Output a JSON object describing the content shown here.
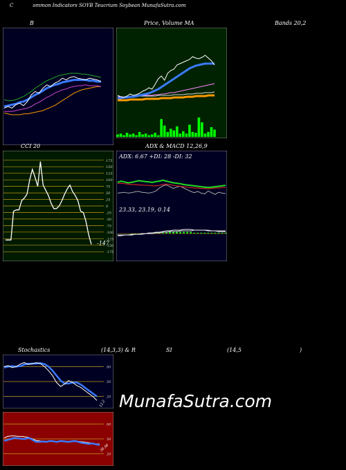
{
  "page_title": "Common Indicators SOYB Teucrium Soybean MunafaSutra.com",
  "title_letter": "C",
  "title_rest": "ommon  Indicators SOYB Teucrium Soybean  MunafaSutra.com",
  "watermark": "MunafaSutra.com",
  "colors": {
    "navy_bg": "#000022",
    "green_bg": "#002200",
    "olive_bg": "#001a00",
    "red_bg": "#8b0000",
    "price": "#ffffff",
    "ma_blue": "#3a7bff",
    "ma_green": "#22cc22",
    "ma_orange": "#ff9900",
    "volume": "#00ff00"
  },
  "chart_data": [
    {
      "id": "bollinger",
      "type": "line",
      "title": "B",
      "title_right": "Bands 20,2",
      "series": [
        {
          "values": [
            28,
            30,
            28,
            32,
            34,
            31,
            36,
            44,
            48,
            46,
            52,
            56,
            54,
            58,
            60,
            64,
            62,
            65,
            66,
            64,
            63,
            62,
            64,
            63,
            62,
            60
          ]
        },
        {
          "values": [
            30,
            31,
            32,
            33,
            35,
            36,
            38,
            41,
            44,
            46,
            49,
            52,
            54,
            56,
            57,
            59,
            60,
            61,
            62,
            62,
            62,
            62,
            61,
            61,
            60,
            60
          ]
        },
        {
          "values": [
            38,
            37,
            37,
            38,
            40,
            42,
            45,
            48,
            52,
            55,
            58,
            61,
            63,
            65,
            67,
            68,
            69,
            70,
            70,
            70,
            69,
            69,
            68,
            67,
            66,
            65
          ]
        },
        {
          "values": [
            24,
            24,
            24,
            25,
            26,
            27,
            28,
            30,
            33,
            35,
            38,
            41,
            43,
            46,
            48,
            50,
            51,
            53,
            54,
            55,
            55,
            56,
            55,
            55,
            55,
            54
          ]
        },
        {
          "values": [
            22,
            21,
            20,
            20,
            20,
            21,
            21,
            22,
            23,
            24,
            25,
            27,
            29,
            31,
            34,
            37,
            40,
            43,
            46,
            48,
            50,
            51,
            52,
            53,
            54,
            54
          ]
        }
      ],
      "ylim": [
        0,
        100
      ]
    },
    {
      "id": "price_ma",
      "type": "line",
      "title": "Price,  Volume  MA",
      "series": [
        {
          "values": [
            22,
            20,
            19,
            21,
            24,
            22,
            23,
            25,
            28,
            30,
            33,
            31,
            38,
            46,
            50,
            44,
            54,
            58,
            60,
            66,
            68,
            70,
            72,
            74,
            78,
            76,
            75,
            77,
            80,
            76,
            72,
            66
          ]
        },
        {
          "values": [
            18,
            18,
            19,
            19,
            20,
            20,
            21,
            22,
            23,
            24,
            25,
            27,
            29,
            31,
            34,
            37,
            40,
            43,
            46,
            49,
            52,
            55,
            58,
            61,
            63,
            65,
            66,
            67,
            68,
            68,
            68,
            68
          ]
        },
        {
          "values": [
            20,
            20,
            20,
            20,
            21,
            21,
            21,
            21,
            22,
            22,
            22,
            22,
            23,
            23,
            24,
            24,
            25,
            26,
            26,
            27,
            28,
            29,
            30,
            31,
            32,
            33,
            34,
            35,
            36,
            37,
            38,
            39
          ]
        },
        {
          "values": [
            20,
            20,
            20,
            20,
            20,
            20,
            20,
            21,
            21,
            21,
            21,
            21,
            21,
            22,
            22,
            22,
            22,
            22,
            23,
            23,
            23,
            23,
            24,
            24,
            24,
            25,
            25,
            25,
            26,
            26,
            26,
            27
          ]
        },
        {
          "values": [
            15,
            15,
            15,
            15,
            16,
            16,
            16,
            16,
            16,
            17,
            17,
            17,
            17,
            17,
            18,
            18,
            18,
            18,
            19,
            19,
            19,
            19,
            20,
            20,
            20,
            21,
            21,
            21,
            21,
            22,
            22,
            22
          ]
        }
      ],
      "volume": [
        3,
        4,
        2,
        5,
        3,
        4,
        2,
        6,
        3,
        4,
        2,
        3,
        5,
        2,
        22,
        14,
        6,
        10,
        8,
        13,
        4,
        7,
        4,
        15,
        6,
        5,
        24,
        18,
        4,
        6,
        12,
        9
      ],
      "ylim": [
        0,
        100
      ]
    },
    {
      "id": "cci",
      "type": "line",
      "title": "CCI 20",
      "yticks": [
        "175",
        "150",
        "125",
        "100",
        "75",
        "50",
        "25",
        "0",
        "-25",
        "-50",
        "-75",
        "-100",
        "-125",
        "-150",
        "-175"
      ],
      "values": [
        -130,
        -130,
        -130,
        -20,
        -15,
        -15,
        20,
        30,
        45,
        100,
        140,
        110,
        75,
        170,
        80,
        60,
        40,
        10,
        -10,
        -10,
        0,
        20,
        45,
        65,
        80,
        55,
        40,
        20,
        -20,
        -25,
        -60,
        -110,
        -147
      ],
      "last_label": "-147",
      "ylim": [
        -185,
        185
      ]
    },
    {
      "id": "adx_macd",
      "type": "line",
      "title_left": "ADX  & MACD 12,26,9",
      "adx_label": "ADX: 6.67  +DI: 28  -DI: 32",
      "macd_label": "23.33,  23.19,  0.14",
      "adx_green": [
        55,
        58,
        56,
        54,
        55,
        57,
        59,
        58,
        57,
        56,
        55,
        57,
        58,
        60,
        58,
        56,
        54,
        53,
        52,
        50,
        49,
        48,
        47,
        46,
        45,
        44,
        43,
        44,
        45,
        46,
        47,
        48
      ],
      "adx_red": [
        52,
        53,
        52,
        51,
        50,
        50,
        49,
        49,
        48,
        48,
        47,
        47,
        48,
        50,
        51,
        50,
        48,
        47,
        46,
        45,
        44,
        43,
        42,
        42,
        41,
        41,
        40,
        41,
        42,
        42,
        43,
        43
      ],
      "adx_gray": [
        30,
        31,
        32,
        30,
        31,
        33,
        34,
        32,
        31,
        30,
        32,
        35,
        42,
        47,
        49,
        45,
        41,
        44,
        46,
        42,
        38,
        34,
        31,
        34,
        30,
        28,
        35,
        31,
        27,
        32,
        30,
        29
      ],
      "macd": [
        -3,
        -3,
        -2,
        -2,
        -2,
        -1,
        -1,
        0,
        0,
        1,
        1,
        2,
        2,
        3,
        4,
        4,
        5,
        5,
        5,
        6,
        6,
        6,
        5,
        5,
        5,
        5,
        4,
        4,
        4,
        3,
        3,
        3
      ],
      "signal": [
        -2,
        -2,
        -2,
        -2,
        -1,
        -1,
        -1,
        -1,
        0,
        0,
        0,
        1,
        1,
        2,
        2,
        3,
        3,
        3,
        4,
        4,
        4,
        4,
        5,
        5,
        5,
        5,
        5,
        4,
        4,
        4,
        4,
        4
      ],
      "hist": [
        0,
        0,
        0,
        0,
        0,
        0,
        0,
        0,
        0,
        0,
        1,
        1,
        1,
        1,
        2,
        2,
        2,
        2,
        2,
        2,
        2,
        2,
        1,
        1,
        1,
        1,
        1,
        1,
        1,
        1,
        1,
        1
      ]
    },
    {
      "id": "stochastics",
      "type": "line",
      "title": "Stochastics",
      "params": "(14,3,3) & R",
      "yticks": [
        "80",
        "50",
        "20"
      ],
      "fast": [
        80,
        82,
        78,
        80,
        85,
        88,
        84,
        86,
        88,
        86,
        80,
        72,
        62,
        48,
        40,
        45,
        52,
        48,
        42,
        38,
        32,
        26,
        20,
        12
      ],
      "slow": [
        78,
        80,
        81,
        80,
        81,
        84,
        86,
        86,
        86,
        87,
        85,
        80,
        72,
        62,
        52,
        46,
        46,
        48,
        48,
        44,
        38,
        32,
        26,
        20
      ],
      "last_label": "12.2",
      "ylim": [
        0,
        100
      ]
    },
    {
      "id": "rsi",
      "type": "line",
      "title": "SI",
      "params_left": "(14,5",
      "params_right": ")",
      "yticks": [
        "80",
        "50",
        "20"
      ],
      "rsi": [
        46,
        48,
        50,
        52,
        51,
        50,
        50,
        52,
        48,
        44,
        44,
        45,
        44,
        46,
        45,
        44,
        46,
        45,
        44,
        45,
        46,
        44,
        42,
        41,
        40,
        41,
        39,
        38
      ],
      "smooth": [
        52,
        55,
        56,
        56,
        55,
        55,
        54,
        53,
        50,
        47,
        46,
        45,
        45,
        45,
        45,
        45,
        45,
        45,
        45,
        45,
        45,
        45,
        44,
        43,
        42,
        41,
        40,
        40
      ],
      "last_label": "38.98",
      "ylim": [
        0,
        100
      ]
    }
  ]
}
